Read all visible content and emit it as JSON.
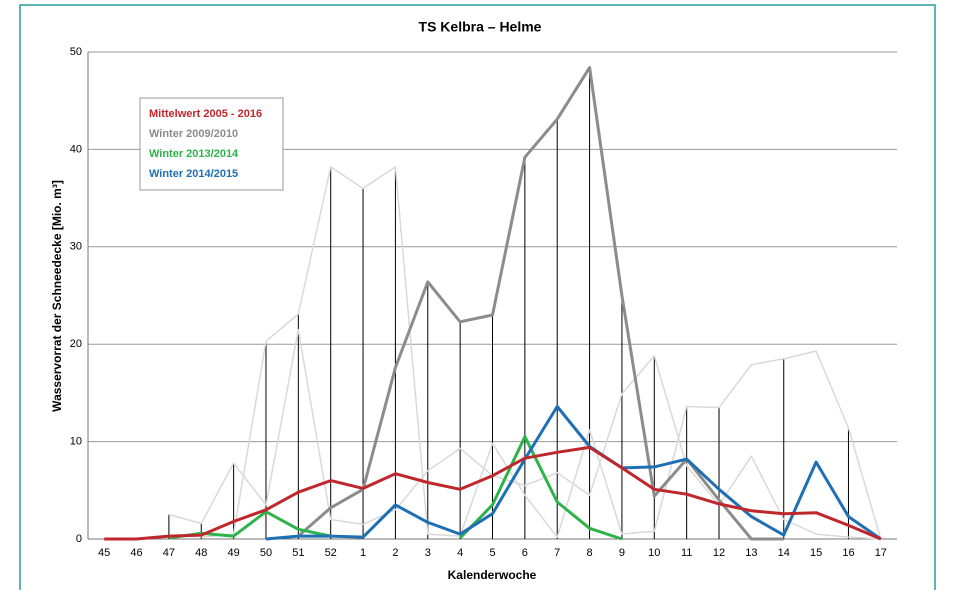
{
  "chart_data": {
    "type": "line",
    "title": "TS Kelbra – Helme",
    "x_label": "Kalenderwoche",
    "y_label": "Wasservorrat der Schneedecke [Mio. m³]",
    "categories": [
      "45",
      "46",
      "47",
      "48",
      "49",
      "50",
      "51",
      "52",
      "1",
      "2",
      "3",
      "4",
      "5",
      "6",
      "7",
      "8",
      "9",
      "10",
      "11",
      "12",
      "13",
      "14",
      "15",
      "16",
      "17"
    ],
    "ylim": [
      0,
      50
    ],
    "yticks": [
      0,
      10,
      20,
      30,
      40,
      50
    ],
    "grid": true,
    "legend": "upper-left",
    "max_lines": {
      "color": "#000000",
      "values": [
        null,
        null,
        2.5,
        1.6,
        7.8,
        20.3,
        23.1,
        38.2,
        36.0,
        38.2,
        26.4,
        22.3,
        23.0,
        39.2,
        43.1,
        48.4,
        25.0,
        18.8,
        13.6,
        13.5,
        null,
        18.5,
        null,
        11.4,
        null
      ]
    },
    "background_series": [
      {
        "color": "#d9d9d9",
        "values": [
          null,
          null,
          null,
          0.2,
          0.5,
          20.3,
          23.1,
          38.2,
          36.0,
          38.2,
          0.5,
          0.3,
          9.8,
          4.5,
          0.2,
          11.2,
          0.5,
          0.8,
          13.6,
          13.5,
          17.9,
          18.5,
          19.3,
          11.4,
          0
        ]
      },
      {
        "color": "#d9d9d9",
        "values": [
          null,
          null,
          2.5,
          1.6,
          7.8,
          3.5,
          21.5,
          2.0,
          1.5,
          3.0,
          7.0,
          9.3,
          6.5,
          5.5,
          6.8,
          4.5,
          14.9,
          18.8,
          7.5,
          3.5,
          8.5,
          2.0,
          0.5,
          0.2,
          0
        ]
      }
    ],
    "series": [
      {
        "name": "Mittelwert 2005 - 2016",
        "color": "#c0272d",
        "values": [
          0,
          0,
          0.3,
          0.4,
          1.8,
          3.0,
          4.8,
          6.0,
          5.2,
          6.7,
          5.8,
          5.1,
          6.5,
          8.3,
          8.9,
          9.4,
          7.3,
          5.1,
          4.6,
          3.6,
          2.9,
          2.6,
          2.7,
          1.4,
          0
        ]
      },
      {
        "name": "Winter 2009/2010",
        "color": "#8c8c8c",
        "values": [
          null,
          null,
          null,
          null,
          null,
          null,
          0.3,
          3.2,
          5.1,
          17.6,
          26.4,
          22.3,
          23.0,
          39.2,
          43.1,
          48.4,
          25.0,
          4.4,
          8.2,
          4.0,
          0,
          0,
          null,
          null,
          null
        ]
      },
      {
        "name": "Winter 2013/2014",
        "color": "#2db34a",
        "values": [
          null,
          null,
          0.1,
          0.6,
          0.3,
          2.8,
          1.0,
          0.3,
          null,
          null,
          null,
          0.1,
          3.5,
          10.5,
          3.8,
          1.1,
          0,
          null,
          null,
          null,
          null,
          null,
          null,
          null,
          null
        ]
      },
      {
        "name": "Winter 2014/2015",
        "color": "#1f6fb5",
        "values": [
          null,
          null,
          null,
          null,
          null,
          0,
          0.3,
          0.3,
          0.2,
          3.5,
          1.7,
          0.5,
          2.6,
          8.2,
          13.6,
          9.5,
          7.3,
          7.4,
          8.2,
          5.1,
          2.3,
          0.4,
          7.9,
          2.3,
          0
        ]
      }
    ]
  }
}
